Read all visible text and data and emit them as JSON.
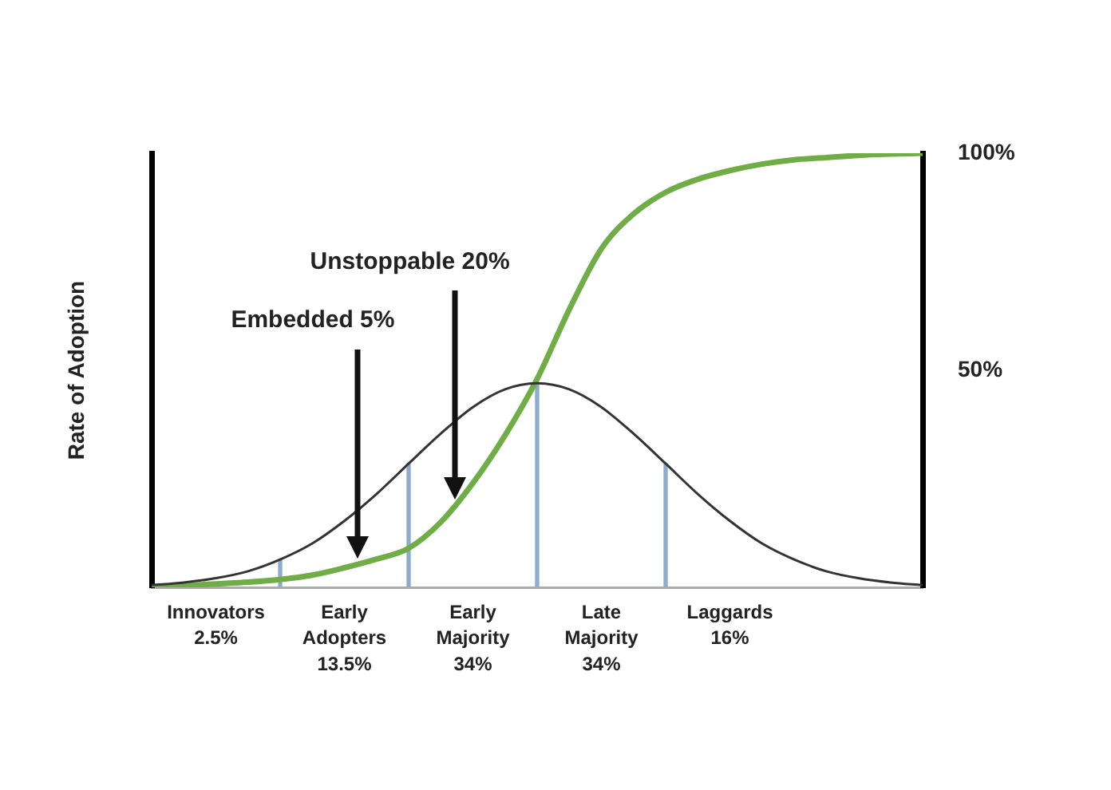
{
  "chart_data": {
    "type": "line",
    "ylabel": "Rate of Adoption",
    "categories": [
      null,
      null,
      "Innovators 2.5%",
      null,
      null,
      null,
      "Early Adopters 13.5%",
      null,
      null,
      null,
      "Early Majority 34%",
      null,
      null,
      null,
      "Late Majority 34%",
      null,
      null,
      null,
      "Laggards 16%",
      null,
      null,
      null,
      null,
      null,
      null
    ],
    "series": [
      {
        "color": "#333333",
        "values": [
          0.5,
          1.1,
          2.1,
          3.7,
          6.4,
          10.1,
          15.3,
          21.5,
          28.5,
          35.4,
          41.5,
          45.6,
          47,
          45.6,
          41.5,
          35.4,
          28.5,
          21.5,
          15.3,
          10.1,
          6.4,
          3.7,
          2.1,
          1.1,
          0.5
        ]
      },
      {
        "color": "#70ad47",
        "values": [
          0,
          0.4,
          0.8,
          1.2,
          1.8,
          2.8,
          4.5,
          6.5,
          9,
          15,
          24,
          35,
          48,
          64,
          78,
          86,
          91,
          94,
          96,
          97.5,
          98.5,
          99,
          99.5,
          99.8,
          100
        ]
      },
      {
        "type": "bar",
        "color": "#8eaad0",
        "values": [
          null,
          null,
          null,
          null,
          6.4,
          null,
          null,
          null,
          28.5,
          null,
          null,
          null,
          47,
          null,
          null,
          null,
          28.5,
          null,
          null,
          null,
          null,
          null,
          null,
          null,
          null
        ]
      }
    ],
    "ylim": [
      0,
      100
    ],
    "yticks": [
      {
        "value": 50,
        "label": "50%"
      },
      {
        "value": 100,
        "label": "100%"
      }
    ],
    "annotations": [
      "Embedded 5%",
      "Unstoppable 20%"
    ],
    "marker": "none",
    "legend": false,
    "grid": false
  }
}
